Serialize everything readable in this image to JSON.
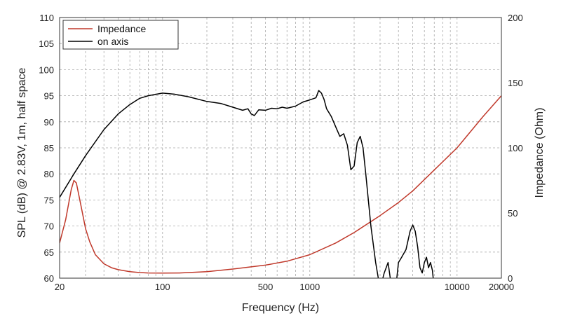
{
  "colors": {
    "spl_line": "#000000",
    "impedance_line": "#c0392b",
    "grid": "#a9a9a9",
    "frame": "#333333"
  },
  "chart_data": {
    "type": "line",
    "title": "",
    "xlabel": "Frequency (Hz)",
    "ylabel_left": "SPL (dB) @ 2.83V, 1m, half space",
    "ylabel_right": "Impedance (Ohm)",
    "x_scale": "log",
    "xlim": [
      20,
      20000
    ],
    "ylim_left": [
      60,
      110
    ],
    "ylim_right": [
      0,
      200
    ],
    "grid": true,
    "legend_position": "top-left",
    "x_tick_labels": [
      {
        "value": 20,
        "label": "20"
      },
      {
        "value": 100,
        "label": "100"
      },
      {
        "value": 500,
        "label": "500"
      },
      {
        "value": 1000,
        "label": "1000"
      },
      {
        "value": 10000,
        "label": "10000"
      },
      {
        "value": 20000,
        "label": "20000"
      }
    ],
    "x_minor_grid": [
      30,
      40,
      50,
      60,
      70,
      80,
      90,
      200,
      300,
      400,
      600,
      700,
      800,
      900,
      2000,
      3000,
      4000,
      5000,
      6000,
      7000,
      8000,
      9000
    ],
    "y_left_ticks": [
      60,
      65,
      70,
      75,
      80,
      85,
      90,
      95,
      100,
      105,
      110
    ],
    "y_right_ticks": [
      0,
      50,
      100,
      150,
      200
    ],
    "series": [
      {
        "name": "Impedance",
        "axis": "right",
        "color": "#c0392b",
        "x": [
          20,
          22,
          24,
          25,
          26,
          28,
          30,
          32,
          35,
          40,
          45,
          50,
          60,
          70,
          80,
          100,
          130,
          200,
          300,
          500,
          700,
          1000,
          1500,
          2000,
          3000,
          4000,
          5000,
          7000,
          10000,
          15000,
          20000
        ],
        "y": [
          27,
          45,
          68,
          75,
          73,
          55,
          38,
          28,
          18,
          11,
          8,
          6.5,
          5,
          4.3,
          4,
          3.9,
          4,
          5,
          7,
          10,
          13,
          18,
          27,
          35,
          48,
          58,
          67,
          83,
          100,
          124,
          140
        ]
      },
      {
        "name": "on axis",
        "axis": "left",
        "color": "#000000",
        "x": [
          20,
          25,
          30,
          40,
          50,
          60,
          70,
          80,
          100,
          120,
          150,
          200,
          250,
          300,
          350,
          380,
          400,
          420,
          450,
          500,
          550,
          600,
          650,
          700,
          800,
          900,
          1000,
          1100,
          1150,
          1200,
          1250,
          1300,
          1400,
          1500,
          1600,
          1700,
          1800,
          1900,
          2000,
          2100,
          2200,
          2300,
          2400,
          2600,
          2800,
          3000,
          3200,
          3400,
          3600,
          3800,
          4000,
          4200,
          4500,
          4800,
          5000,
          5200,
          5400,
          5600,
          5800,
          6000,
          6200,
          6400,
          6600,
          6800,
          7000
        ],
        "y": [
          75.5,
          80,
          83.5,
          88.5,
          91.5,
          93.3,
          94.5,
          95,
          95.5,
          95.3,
          94.8,
          93.9,
          93.5,
          92.8,
          92.2,
          92.5,
          91.5,
          91.2,
          92.3,
          92.2,
          92.6,
          92.5,
          92.8,
          92.6,
          93,
          93.8,
          94.2,
          94.6,
          96,
          95.5,
          94.3,
          92.5,
          91,
          89,
          87.2,
          87.7,
          85.5,
          80.8,
          81.5,
          86,
          87.2,
          85,
          80,
          70,
          63,
          58,
          61,
          63,
          58,
          57,
          63,
          64,
          65.5,
          69,
          70.2,
          69,
          66,
          62,
          61,
          63,
          64,
          62,
          63,
          61.5,
          58
        ]
      }
    ]
  }
}
